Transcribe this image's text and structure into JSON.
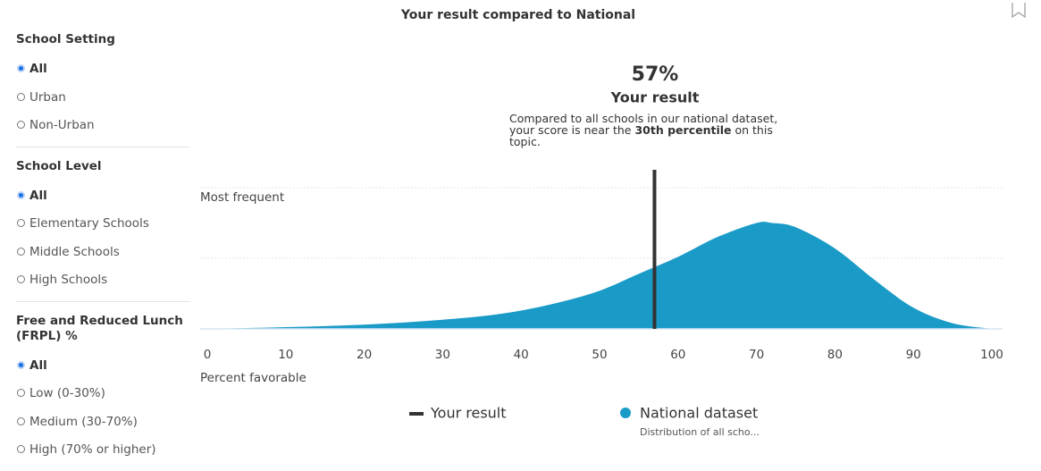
{
  "sidebar": {
    "filters": [
      {
        "title": "School Setting",
        "options": [
          "All",
          "Urban",
          "Non-Urban"
        ],
        "selected": 0
      },
      {
        "title": "School Level",
        "options": [
          "All",
          "Elementary Schools",
          "Middle Schools",
          "High Schools"
        ],
        "selected": 0
      },
      {
        "title": "Free and Reduced Lunch (FRPL) %",
        "options": [
          "All",
          "Low (0-30%)",
          "Medium (30-70%)",
          "High (70% or higher)"
        ],
        "selected": 0
      }
    ]
  },
  "chart_data": {
    "type": "area",
    "title": "Your result compared to National",
    "x": [
      0,
      5,
      10,
      15,
      20,
      25,
      30,
      35,
      40,
      45,
      50,
      55,
      60,
      65,
      70,
      72,
      75,
      80,
      85,
      90,
      95,
      100
    ],
    "series": [
      {
        "name": "National dataset",
        "color": "#1a9bc7",
        "values": [
          0,
          0.006,
          0.013,
          0.02,
          0.03,
          0.045,
          0.065,
          0.09,
          0.13,
          0.19,
          0.27,
          0.39,
          0.51,
          0.65,
          0.75,
          0.75,
          0.72,
          0.57,
          0.35,
          0.15,
          0.04,
          0
        ]
      }
    ],
    "legend_note": "Distribution of all scho...",
    "marker": {
      "name": "Your result",
      "value": 57,
      "label": "57%",
      "color": "#333333",
      "note": [
        "Compared to all schools in our national dataset, your score is near the ",
        "30th percentile",
        " on this topic."
      ]
    },
    "xlabel": "Percent favorable",
    "xlim": [
      0,
      100
    ],
    "xticks": [
      0,
      10,
      20,
      30,
      40,
      50,
      60,
      70,
      80,
      90,
      100
    ],
    "ylim": [
      0,
      1
    ],
    "yticks": [
      {
        "value": 1,
        "label": "Most frequent"
      }
    ],
    "grid": true
  }
}
